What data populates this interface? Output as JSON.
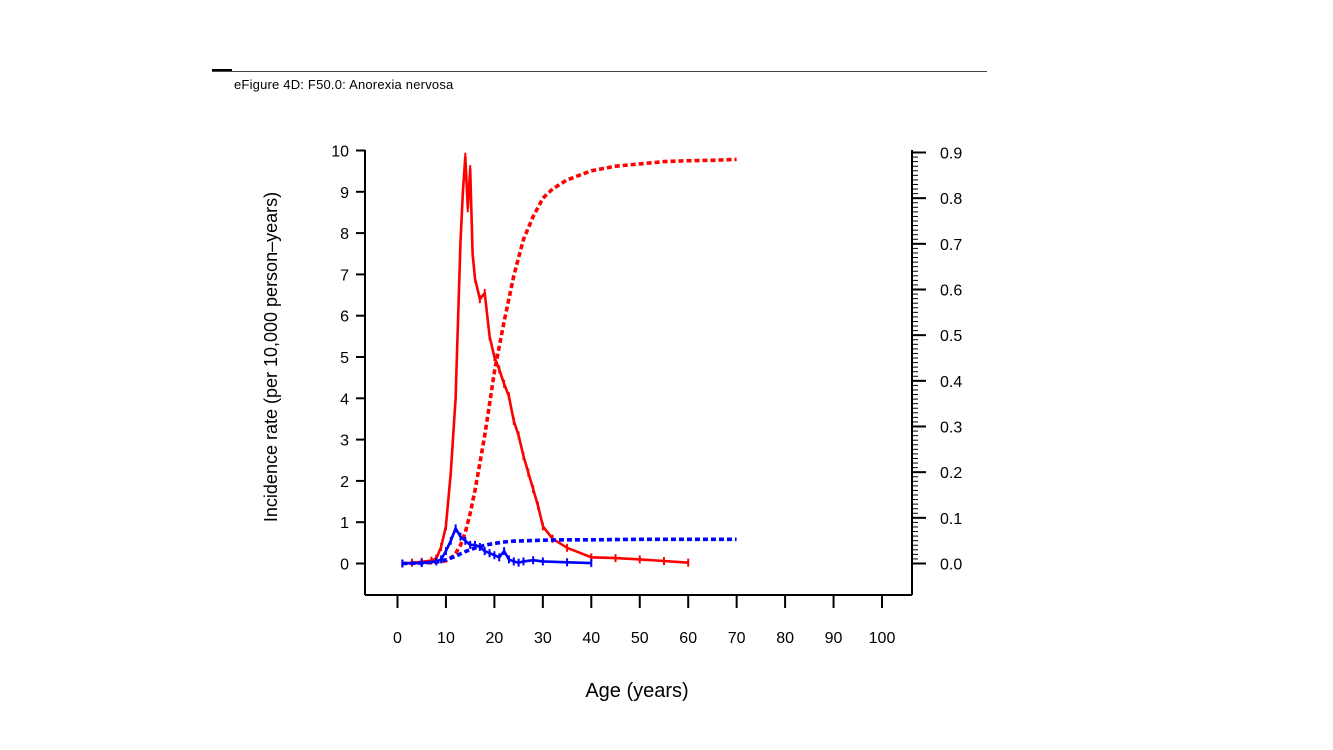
{
  "figure": {
    "title": "eFigure 4D: F50.0: Anorexia nervosa"
  },
  "chart_data": {
    "type": "line",
    "title": "",
    "xlabel": "Age (years)",
    "ylabel": "Incidence rate (per 10,000 person–years)",
    "y2label": "",
    "xlim": [
      0,
      100
    ],
    "ylim": [
      0,
      10
    ],
    "y2lim": [
      0,
      0.9
    ],
    "xticks": [
      "0",
      "10",
      "20",
      "30",
      "40",
      "50",
      "60",
      "70",
      "80",
      "90",
      "100"
    ],
    "yticks": [
      "0",
      "1",
      "2",
      "3",
      "4",
      "5",
      "6",
      "7",
      "8",
      "9",
      "10"
    ],
    "y2ticks": [
      "0.0",
      "0.1",
      "0.2",
      "0.3",
      "0.4",
      "0.5",
      "0.6",
      "0.7",
      "0.8",
      "0.9"
    ],
    "grid": false,
    "legend": "none",
    "colors": {
      "red": "#ff0000",
      "blue": "#0000ff"
    },
    "series": [
      {
        "color": "#ff0000",
        "style": "solid",
        "axis": "left",
        "x": [
          1,
          3,
          5,
          7,
          8,
          9,
          10,
          11,
          12,
          13,
          13.5,
          14,
          14.5,
          15,
          15.5,
          16,
          17,
          18,
          19,
          20,
          21,
          22,
          23,
          24,
          25,
          26,
          27,
          28,
          29,
          30,
          32,
          35,
          40,
          45,
          50,
          55,
          60
        ],
        "y": [
          0.0,
          0.02,
          0.04,
          0.07,
          0.12,
          0.4,
          0.9,
          2.2,
          4.0,
          7.8,
          9.0,
          9.85,
          8.6,
          9.55,
          7.5,
          6.9,
          6.4,
          6.55,
          5.5,
          5.0,
          4.7,
          4.35,
          4.05,
          3.45,
          3.1,
          2.6,
          2.2,
          1.8,
          1.4,
          0.9,
          0.6,
          0.38,
          0.15,
          0.13,
          0.1,
          0.06,
          0.02
        ]
      },
      {
        "color": "#ff0000",
        "style": "dashed",
        "axis": "right",
        "x": [
          1,
          5,
          8,
          10,
          11,
          12,
          13,
          14,
          15,
          16,
          17,
          18,
          19,
          20,
          22,
          24,
          26,
          28,
          30,
          32,
          35,
          40,
          45,
          50,
          55,
          60,
          65,
          70
        ],
        "y": [
          0.0,
          0.001,
          0.003,
          0.006,
          0.012,
          0.022,
          0.04,
          0.068,
          0.11,
          0.16,
          0.22,
          0.28,
          0.35,
          0.42,
          0.53,
          0.63,
          0.71,
          0.76,
          0.8,
          0.82,
          0.84,
          0.86,
          0.87,
          0.875,
          0.88,
          0.882,
          0.883,
          0.885
        ]
      },
      {
        "color": "#0000ff",
        "style": "solid",
        "axis": "left",
        "x": [
          1,
          5,
          8,
          9,
          10,
          11,
          12,
          13,
          14,
          15,
          16,
          17,
          18,
          19,
          20,
          21,
          22,
          23,
          24,
          25,
          26,
          28,
          30,
          35,
          40
        ],
        "y": [
          0.0,
          0.01,
          0.05,
          0.1,
          0.3,
          0.55,
          0.85,
          0.65,
          0.55,
          0.45,
          0.45,
          0.4,
          0.3,
          0.25,
          0.2,
          0.15,
          0.3,
          0.1,
          0.05,
          0.02,
          0.05,
          0.08,
          0.05,
          0.03,
          0.01
        ]
      },
      {
        "color": "#0000ff",
        "style": "dashed",
        "axis": "right",
        "x": [
          1,
          5,
          8,
          10,
          12,
          14,
          16,
          18,
          20,
          22,
          24,
          27,
          30,
          35,
          40,
          50,
          60,
          70
        ],
        "y": [
          0.0,
          0.001,
          0.003,
          0.008,
          0.016,
          0.026,
          0.034,
          0.04,
          0.044,
          0.047,
          0.049,
          0.05,
          0.051,
          0.052,
          0.052,
          0.053,
          0.053,
          0.053
        ]
      }
    ]
  }
}
